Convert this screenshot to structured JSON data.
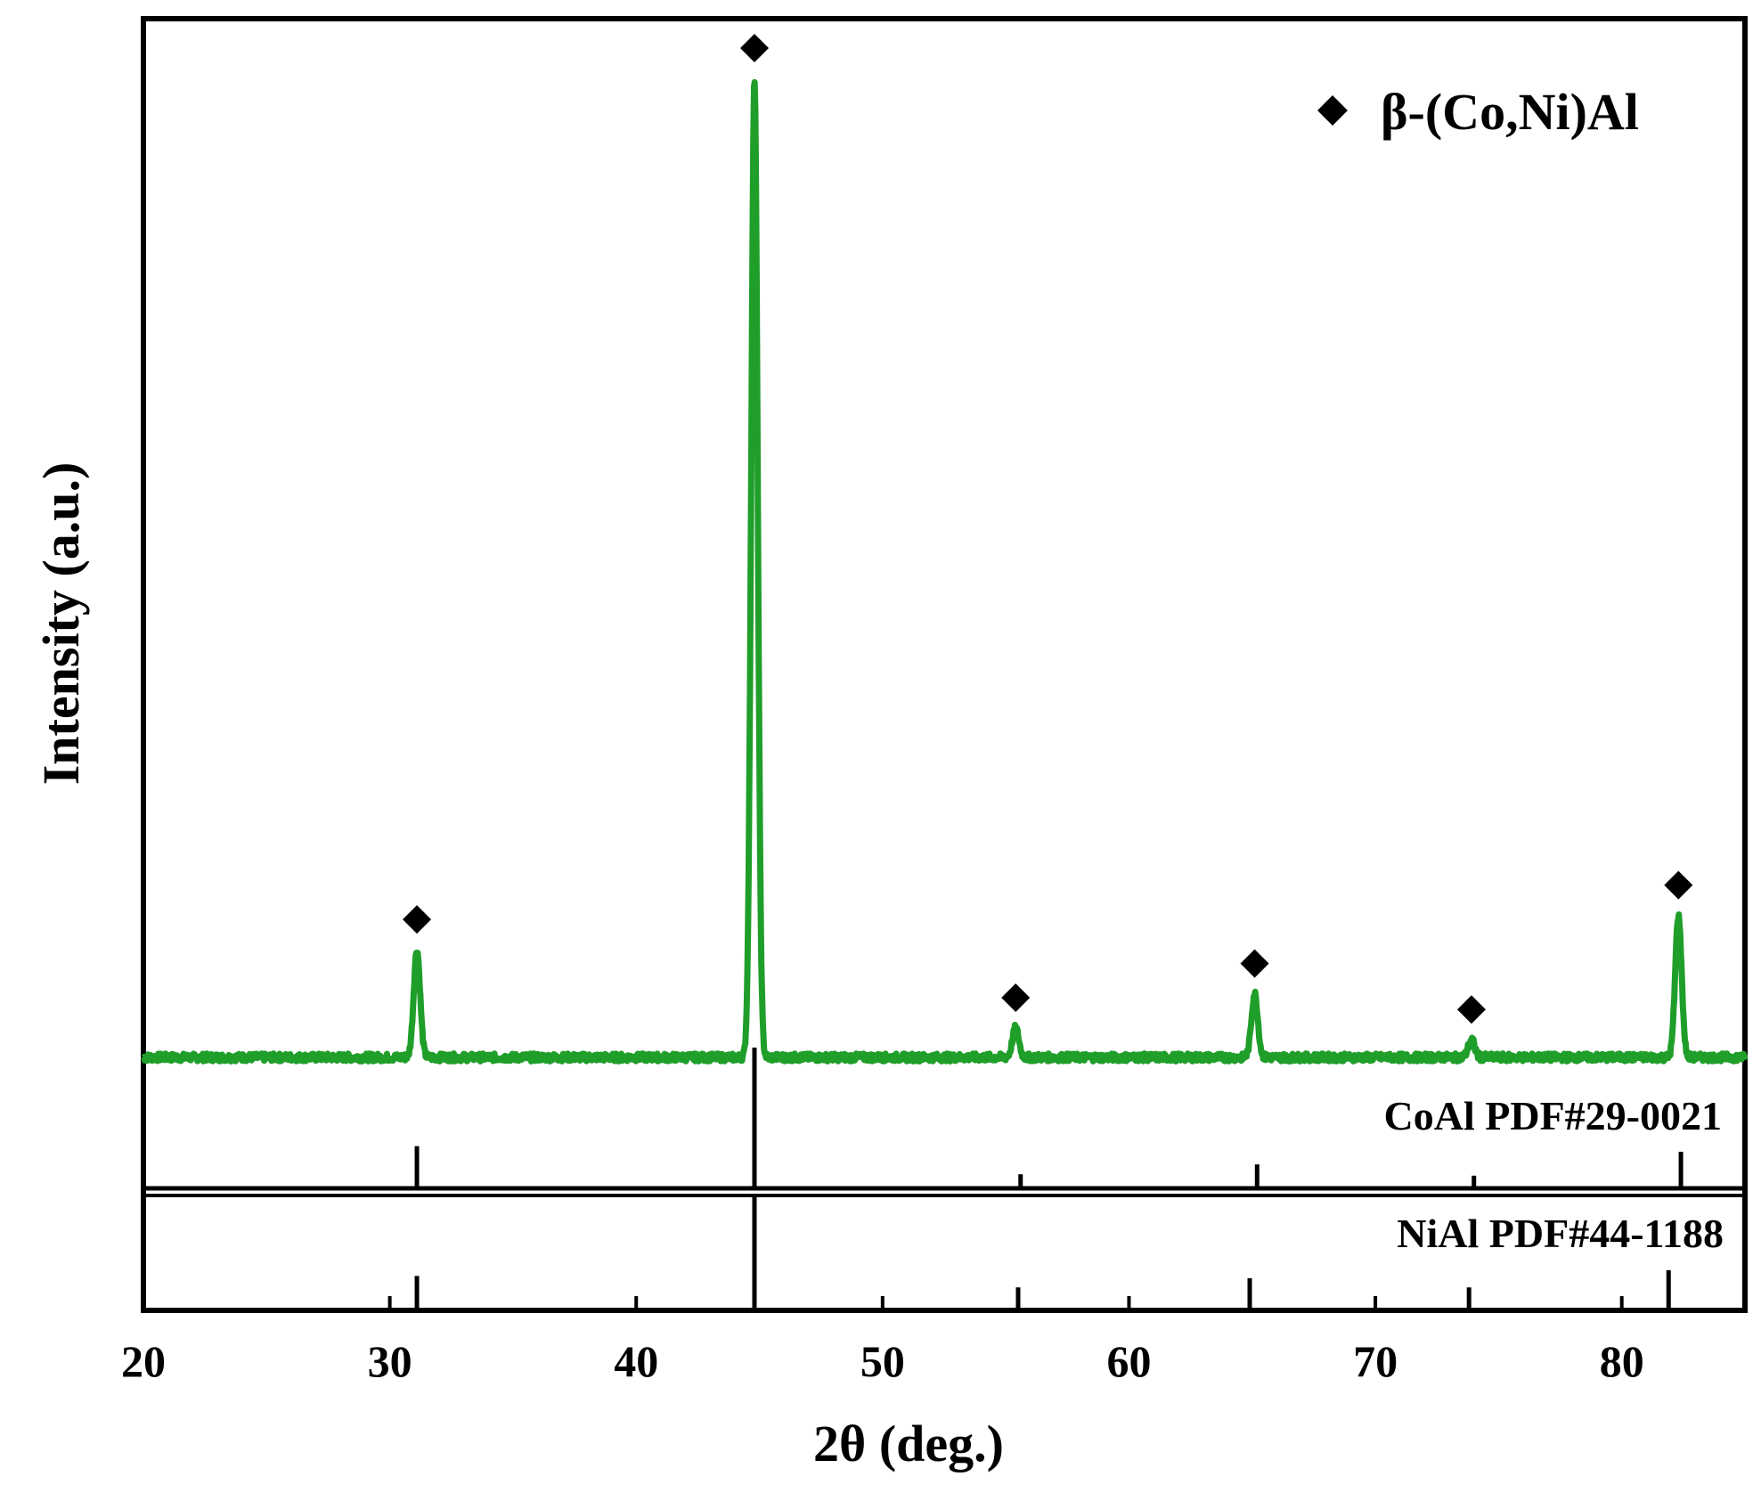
{
  "chart_data": {
    "type": "line",
    "xlabel": "2θ (deg.)",
    "ylabel": "Intensity (a.u.)",
    "xlim": [
      20,
      85
    ],
    "x_ticks": [
      20,
      30,
      40,
      50,
      60,
      70,
      80
    ],
    "y_ticks_shown": false,
    "grid": false,
    "legend": {
      "placement": "top-right",
      "marker": "diamond",
      "label": "β-(Co,Ni)Al"
    },
    "series": [
      {
        "color": "#1f9e2a",
        "baseline": 0,
        "peaks": [
          {
            "x": 31.1,
            "height": 0.11
          },
          {
            "x": 44.8,
            "height": 1.0
          },
          {
            "x": 55.4,
            "height": 0.03
          },
          {
            "x": 65.1,
            "height": 0.065
          },
          {
            "x": 73.9,
            "height": 0.018
          },
          {
            "x": 82.3,
            "height": 0.145
          }
        ]
      }
    ],
    "peak_markers_x": [
      31.1,
      44.8,
      55.4,
      65.1,
      73.9,
      82.3
    ],
    "reference_patterns": [
      {
        "label": "CoAl PDF#29-0021",
        "lines": [
          {
            "x": 31.1,
            "intensity": 0.3
          },
          {
            "x": 44.8,
            "intensity": 1.0
          },
          {
            "x": 55.6,
            "intensity": 0.1
          },
          {
            "x": 65.2,
            "intensity": 0.17
          },
          {
            "x": 74.0,
            "intensity": 0.09
          },
          {
            "x": 82.4,
            "intensity": 0.26
          }
        ]
      },
      {
        "label": "NiAl PDF#44-1188",
        "lines": [
          {
            "x": 31.1,
            "intensity": 0.3
          },
          {
            "x": 44.8,
            "intensity": 1.0
          },
          {
            "x": 55.5,
            "intensity": 0.2
          },
          {
            "x": 64.9,
            "intensity": 0.28
          },
          {
            "x": 73.8,
            "intensity": 0.2
          },
          {
            "x": 81.9,
            "intensity": 0.35
          }
        ]
      }
    ]
  }
}
